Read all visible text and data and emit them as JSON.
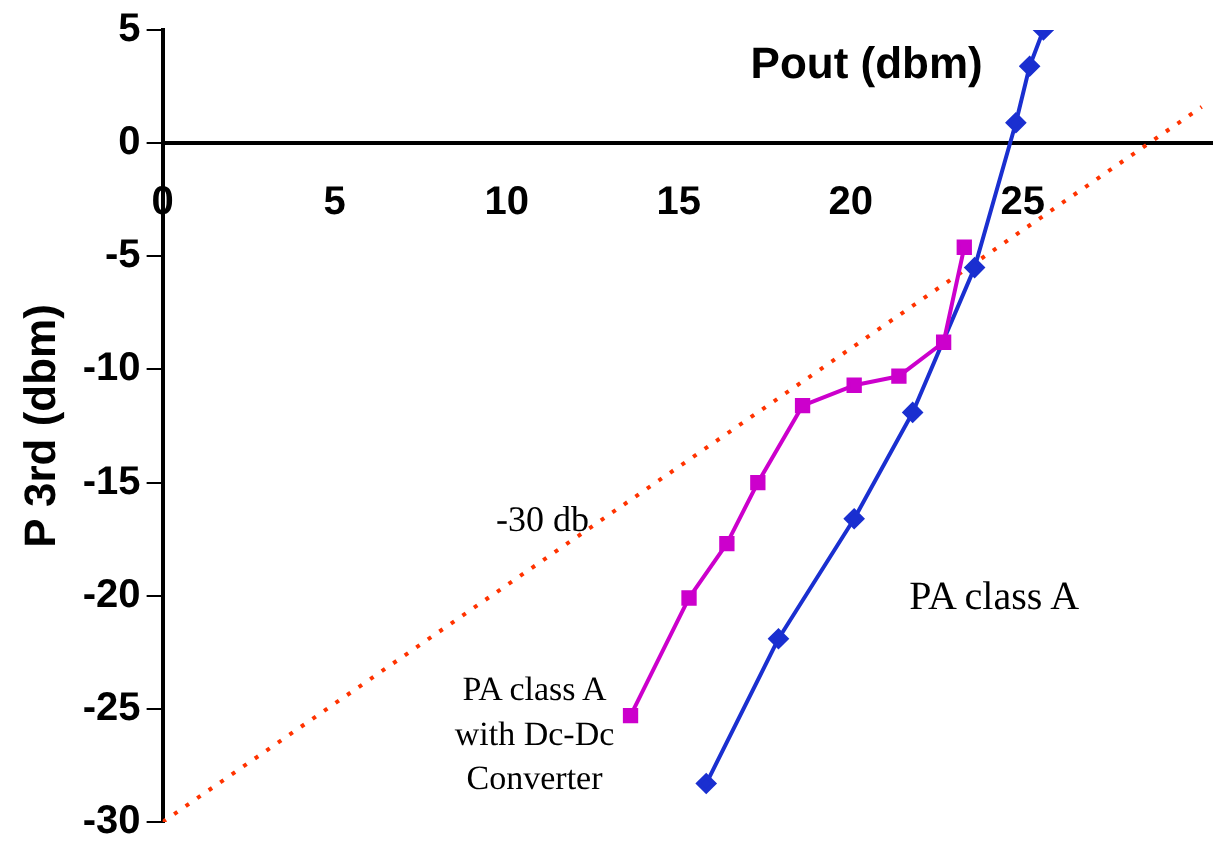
{
  "chart_data": {
    "type": "line",
    "xlabel": "Pout (dbm)",
    "ylabel": "P 3rd (dbm)",
    "xlim": [
      0,
      30.5
    ],
    "xticks": [
      0,
      5,
      10,
      15,
      20,
      25
    ],
    "ylim": [
      -30,
      5
    ],
    "yticks": [
      -30,
      -25,
      -20,
      -15,
      -10,
      -5,
      0,
      5
    ],
    "grid": false,
    "legend": false,
    "series": [
      {
        "name": "PA class A with Dc-Dc Converter",
        "color": "#cc00cc",
        "marker": "square",
        "x": [
          13.6,
          15.3,
          16.4,
          17.3,
          18.6,
          20.1,
          21.4,
          22.7,
          23.3
        ],
        "values": [
          -25.3,
          -20.1,
          -17.7,
          -15.0,
          -11.6,
          -10.7,
          -10.3,
          -8.8,
          -4.6
        ]
      },
      {
        "name": "PA class A",
        "color": "#1a2fd0",
        "marker": "diamond",
        "x": [
          15.8,
          17.9,
          20.1,
          21.8,
          23.6,
          24.8,
          25.2,
          25.6
        ],
        "values": [
          -28.3,
          -21.9,
          -16.6,
          -11.9,
          -5.5,
          0.9,
          3.4,
          5.0
        ]
      },
      {
        "name": "-30 db",
        "color": "#ff3300",
        "marker": "none",
        "line_style": "dotted",
        "x": [
          0,
          30.2
        ],
        "values": [
          -30,
          1.6
        ]
      }
    ]
  }
}
